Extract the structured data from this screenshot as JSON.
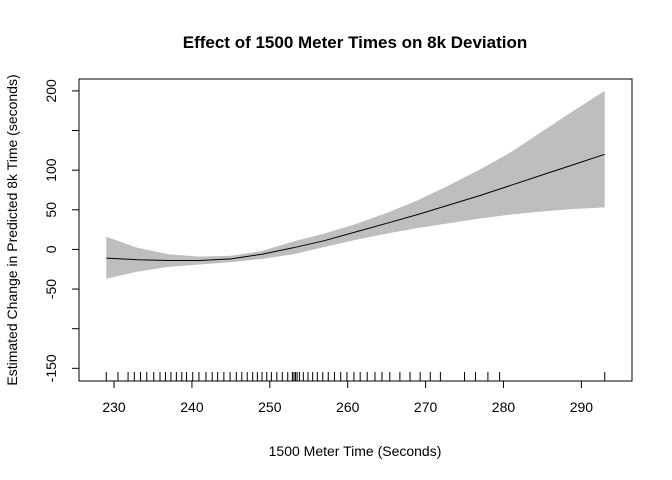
{
  "chart_data": {
    "type": "line",
    "title": "Effect of 1500 Meter Times on 8k Deviation",
    "xlabel": "1500 Meter Time (Seconds)",
    "ylabel": "Estimated Change in Predicted 8k Time (seconds)",
    "xlim": [
      225.5,
      296.5
    ],
    "ylim": [
      -166,
      215
    ],
    "x_ticks": [
      230,
      240,
      250,
      260,
      270,
      280,
      290
    ],
    "y_ticks": [
      200,
      150,
      100,
      50,
      0,
      -50,
      -100,
      -150
    ],
    "y_tick_labels": [
      "200",
      "",
      "100",
      "50",
      "0",
      "-50",
      "",
      "-150"
    ],
    "grid": false,
    "legend": "none",
    "series": [
      {
        "x": [
          229,
          233,
          237,
          241,
          245,
          249,
          253,
          257,
          261,
          265,
          269,
          273,
          277,
          281,
          285,
          289,
          293
        ],
        "fit": [
          -11,
          -13,
          -14,
          -14,
          -12,
          -6,
          2,
          11,
          22,
          33,
          44,
          56,
          68,
          81,
          94,
          107,
          120
        ],
        "lower": [
          -37,
          -28,
          -22,
          -19,
          -16,
          -12,
          -6,
          3,
          12,
          20,
          27,
          33,
          39,
          44,
          48,
          51,
          53
        ],
        "upper": [
          16,
          2,
          -6,
          -9,
          -8,
          -2,
          10,
          20,
          32,
          46,
          62,
          81,
          101,
          123,
          149,
          175,
          200
        ]
      }
    ],
    "rug": [
      229,
      230.5,
      231.8,
      232.6,
      233.4,
      234.2,
      235.1,
      235.9,
      236.6,
      237.3,
      238,
      238.7,
      239.3,
      240.1,
      240.9,
      241.8,
      242.6,
      243.3,
      244.1,
      244.9,
      245.7,
      246.4,
      247.1,
      247.8,
      248.4,
      249,
      249.6,
      250.2,
      250.9,
      251.6,
      252.3,
      252.9,
      253.1,
      253.3,
      253.5,
      253.8,
      254.3,
      254.9,
      255.5,
      256.1,
      256.8,
      257.5,
      258.3,
      259.1,
      259.9,
      260.8,
      261.6,
      262.5,
      263.5,
      264.4,
      265.4,
      266.7,
      268,
      269.3,
      270.6,
      271.9,
      275,
      276.4,
      278,
      279.5,
      293
    ]
  }
}
